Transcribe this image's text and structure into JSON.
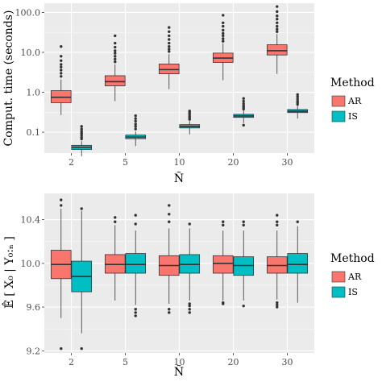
{
  "colors": {
    "AR": "#F8766D",
    "IS": "#00BFC4",
    "panel": "#EBEBEB",
    "grid": "#FFFFFF"
  },
  "chart_data": [
    {
      "type": "boxplot",
      "ylabel": "Comput. time (seconds)",
      "xlabel": "Ñ",
      "yscale": "log10",
      "ylim": [
        0.03,
        170
      ],
      "yticks": [
        0.1,
        1.0,
        10.0,
        100.0
      ],
      "ytick_labels": [
        "0.1",
        "1.0",
        "10.0",
        "100.0"
      ],
      "categories": [
        "2",
        "5",
        "10",
        "20",
        "30"
      ],
      "legend": {
        "title": "Method",
        "entries": [
          "AR",
          "IS"
        ],
        "position": "right"
      },
      "series": [
        {
          "name": "AR",
          "boxes": [
            {
              "min": 0.27,
              "q1": 0.55,
              "median": 0.75,
              "q3": 1.1,
              "max": 2.1,
              "outliers": [
                2.5,
                3.0,
                3.6,
                4.3,
                5.0,
                6.2,
                8.0,
                14
              ]
            },
            {
              "min": 0.6,
              "q1": 1.45,
              "median": 1.85,
              "q3": 2.6,
              "max": 5.0,
              "outliers": [
                5.8,
                6.8,
                8.0,
                9.5,
                11,
                13.5,
                17,
                26
              ]
            },
            {
              "min": 1.2,
              "q1": 2.9,
              "median": 3.7,
              "q3": 5.1,
              "max": 9.0,
              "outliers": [
                10.5,
                12,
                14,
                17,
                21,
                26,
                33,
                42
              ]
            },
            {
              "min": 2.0,
              "q1": 5.6,
              "median": 7.2,
              "q3": 9.6,
              "max": 17,
              "outliers": [
                19,
                22,
                26,
                30,
                36,
                45,
                55,
                85
              ]
            },
            {
              "min": 2.9,
              "q1": 8.6,
              "median": 11,
              "q3": 15.5,
              "max": 29,
              "outliers": [
                33,
                38,
                45,
                55,
                68,
                82,
                105,
                140
              ]
            }
          ]
        },
        {
          "name": "IS",
          "boxes": [
            {
              "min": 0.025,
              "q1": 0.037,
              "median": 0.042,
              "q3": 0.047,
              "max": 0.06,
              "outliers": [
                0.068,
                0.075,
                0.085,
                0.095,
                0.105,
                0.12,
                0.14
              ]
            },
            {
              "min": 0.045,
              "q1": 0.069,
              "median": 0.076,
              "q3": 0.085,
              "max": 0.105,
              "outliers": [
                0.12,
                0.14,
                0.16,
                0.19,
                0.22,
                0.26
              ]
            },
            {
              "min": 0.088,
              "q1": 0.128,
              "median": 0.14,
              "q3": 0.155,
              "max": 0.19,
              "outliers": [
                0.21,
                0.23,
                0.25,
                0.28,
                0.31,
                0.34
              ]
            },
            {
              "min": 0.17,
              "q1": 0.235,
              "median": 0.255,
              "q3": 0.28,
              "max": 0.35,
              "outliers": [
                0.15,
                0.38,
                0.42,
                0.46,
                0.52,
                0.6,
                0.7
              ]
            },
            {
              "min": 0.22,
              "q1": 0.31,
              "median": 0.335,
              "q3": 0.37,
              "max": 0.46,
              "outliers": [
                0.5,
                0.55,
                0.6,
                0.68,
                0.78,
                0.88
              ]
            }
          ]
        }
      ]
    },
    {
      "type": "boxplot",
      "ylabel": "𝔼̂ [ X₀ | Y₀:ₙ ]",
      "xlabel": "Ñ",
      "ylim": [
        9.18,
        10.64
      ],
      "yticks": [
        9.2,
        9.6,
        10.0,
        10.4
      ],
      "ytick_labels": [
        "9.2",
        "9.6",
        "10.0",
        "10.4"
      ],
      "categories": [
        "2",
        "5",
        "10",
        "20",
        "30"
      ],
      "legend": {
        "title": "Method",
        "entries": [
          "AR",
          "IS"
        ],
        "position": "right"
      },
      "series": [
        {
          "name": "AR",
          "boxes": [
            {
              "min": 9.5,
              "q1": 9.86,
              "median": 9.99,
              "q3": 10.12,
              "max": 10.5,
              "outliers": [
                9.22,
                10.53,
                10.58
              ]
            },
            {
              "min": 9.66,
              "q1": 9.91,
              "median": 9.99,
              "q3": 10.08,
              "max": 10.35,
              "outliers": [
                10.38,
                10.42
              ]
            },
            {
              "min": 9.63,
              "q1": 9.89,
              "median": 9.98,
              "q3": 10.07,
              "max": 10.32,
              "outliers": [
                9.55,
                9.58,
                10.38,
                10.45,
                10.53
              ]
            },
            {
              "min": 9.66,
              "q1": 9.91,
              "median": 10.0,
              "q3": 10.07,
              "max": 10.3,
              "outliers": [
                9.63,
                9.64,
                10.35,
                10.38
              ]
            },
            {
              "min": 9.67,
              "q1": 9.91,
              "median": 9.98,
              "q3": 10.06,
              "max": 10.3,
              "outliers": [
                9.6,
                9.62,
                9.64,
                10.35,
                10.38,
                10.44
              ]
            }
          ]
        },
        {
          "name": "IS",
          "boxes": [
            {
              "min": 9.36,
              "q1": 9.74,
              "median": 9.88,
              "q3": 10.02,
              "max": 10.48,
              "outliers": [
                9.22,
                10.5
              ]
            },
            {
              "min": 9.62,
              "q1": 9.91,
              "median": 9.99,
              "q3": 10.09,
              "max": 10.3,
              "outliers": [
                9.52,
                9.55,
                9.58,
                10.36,
                10.44
              ]
            },
            {
              "min": 9.66,
              "q1": 9.91,
              "median": 9.99,
              "q3": 10.08,
              "max": 10.32,
              "outliers": [
                9.55,
                9.58,
                9.61,
                9.63,
                10.36
              ]
            },
            {
              "min": 9.66,
              "q1": 9.89,
              "median": 9.98,
              "q3": 10.06,
              "max": 10.3,
              "outliers": [
                9.61,
                10.35,
                10.38
              ]
            },
            {
              "min": 9.64,
              "q1": 9.91,
              "median": 9.99,
              "q3": 10.09,
              "max": 10.34,
              "outliers": [
                10.38
              ]
            }
          ]
        }
      ]
    }
  ]
}
